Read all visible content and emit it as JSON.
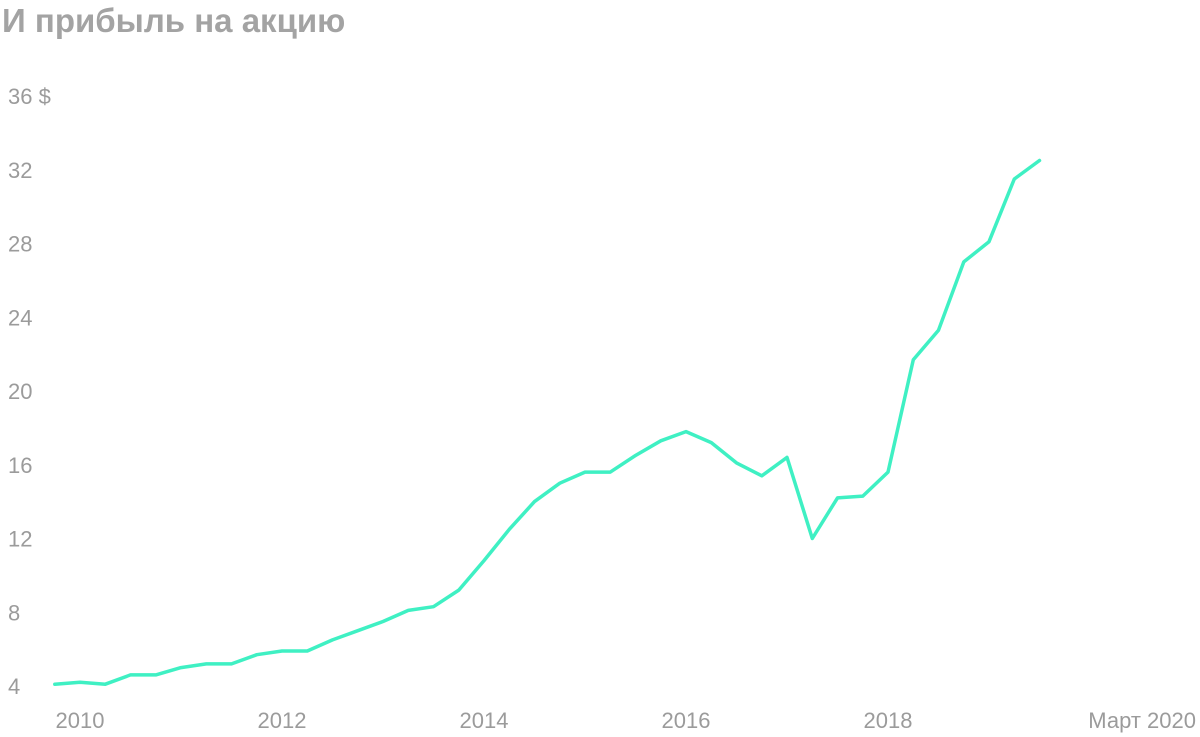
{
  "chart_data": {
    "type": "line",
    "title": "И прибыль на акцию",
    "y_ticks": [
      "36 $",
      "32",
      "28",
      "24",
      "20",
      "16",
      "12",
      "8",
      "4"
    ],
    "y_tick_values": [
      36,
      32,
      28,
      24,
      20,
      16,
      12,
      8,
      4
    ],
    "x_ticks": [
      "2010",
      "2012",
      "2014",
      "2016",
      "2018",
      "Март 2020"
    ],
    "x_tick_values": [
      2010,
      2012,
      2014,
      2016,
      2018,
      2020.2
    ],
    "ylim": [
      4,
      36
    ],
    "grid": false,
    "line_color": "#3ff0c3",
    "series": [
      {
        "x": [
          2009.75,
          2010.0,
          2010.25,
          2010.5,
          2010.75,
          2011.0,
          2011.25,
          2011.5,
          2011.75,
          2012.0,
          2012.25,
          2012.5,
          2012.75,
          2013.0,
          2013.25,
          2013.5,
          2013.75,
          2014.0,
          2014.25,
          2014.5,
          2014.75,
          2015.0,
          2015.25,
          2015.5,
          2015.75,
          2016.0,
          2016.25,
          2016.5,
          2016.75,
          2017.0,
          2017.25,
          2017.5,
          2017.75,
          2018.0,
          2018.25,
          2018.5,
          2018.75,
          2019.0,
          2019.25,
          2019.5
        ],
        "y": [
          4.1,
          4.2,
          4.1,
          4.6,
          4.6,
          5.0,
          5.2,
          5.2,
          5.7,
          5.9,
          5.9,
          6.5,
          7.0,
          7.5,
          8.1,
          8.3,
          9.2,
          10.8,
          12.5,
          14.0,
          15.0,
          15.6,
          15.6,
          16.5,
          17.3,
          17.8,
          17.2,
          16.1,
          15.4,
          16.4,
          12.0,
          14.2,
          14.3,
          15.6,
          21.7,
          23.3,
          27.0,
          28.1,
          31.5,
          32.5
        ]
      }
    ]
  }
}
